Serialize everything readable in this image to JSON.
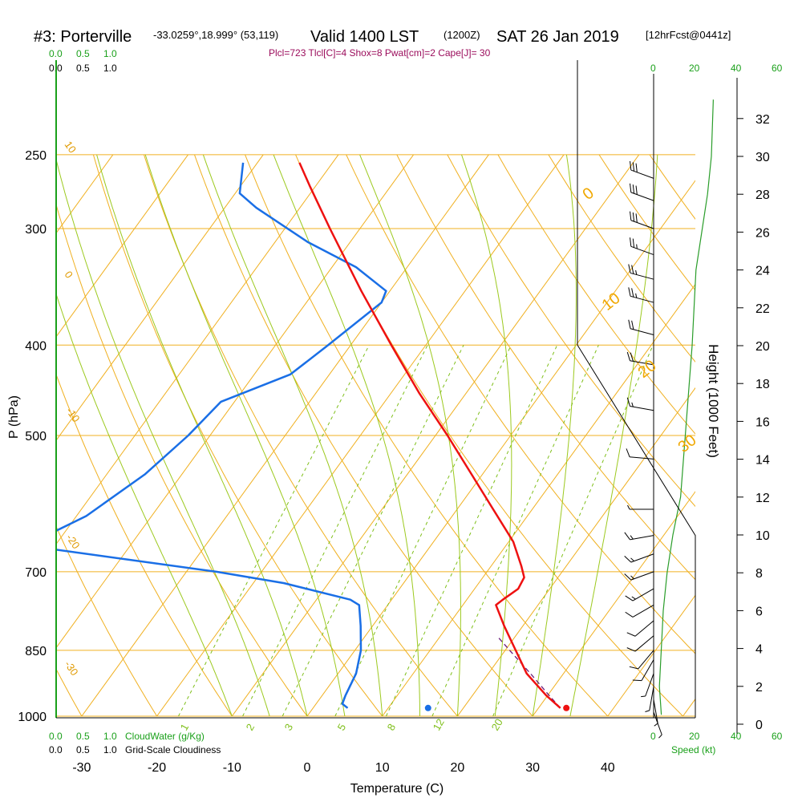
{
  "header": {
    "station": "#3: Porterville",
    "coords": "-33.0259°,18.999° (53,119)",
    "valid": "Valid 1400 LST",
    "utc": "(1200Z)",
    "date": "SAT 26 Jan 2019",
    "fcst": "[12hrFcst@0441z]",
    "indices": "Plcl=723 Tlcl[C]=4 Shox=8 Pwat[cm]=2 Cape[J]= 30"
  },
  "scales": {
    "cloudwater_ticks": [
      "0.0",
      "0.5",
      "1.0"
    ],
    "cloudiness_ticks": [
      "0.0",
      "0.5",
      "1.0"
    ],
    "cloudwater_label": "CloudWater (g/Kg)",
    "cloudiness_label": "Grid-Scale Cloudiness",
    "speed_ticks": [
      "0",
      "20",
      "40",
      "60"
    ],
    "speed_label": "Speed (kt)"
  },
  "axes": {
    "ylabel": "P (hPa)",
    "xlabel": "Temperature (C)",
    "height_label": "Height (1000 Feet)"
  },
  "colors": {
    "temperature": "#ee1111",
    "dewpoint": "#1a6fe6",
    "parcel": "#6a1a7a",
    "isotherm": "#f0b020",
    "mixing_ratio": "#7fbf1a",
    "wind_speed": "#2a9d2a"
  },
  "chart_data": {
    "type": "skew-t",
    "pressure_levels": [
      250,
      300,
      400,
      500,
      700,
      850,
      1000
    ],
    "pressure_scale": "log",
    "x_ticks": [
      -30,
      -20,
      -10,
      0,
      10,
      20,
      30,
      40
    ],
    "height_ticks_kft": [
      0,
      2,
      4,
      6,
      8,
      10,
      12,
      14,
      16,
      18,
      20,
      22,
      24,
      26,
      28,
      30,
      32
    ],
    "isotherm_labels": [
      "10",
      "0",
      "-10",
      "-20",
      "-30"
    ],
    "dry_adiabat_labels": [
      "0",
      "10",
      "20",
      "30"
    ],
    "mixing_ratio_labels": [
      "1",
      "2",
      "3",
      "5",
      "8",
      "12",
      "20"
    ],
    "temperature_profile": [
      {
        "p": 980,
        "t": 32.9
      },
      {
        "p": 950,
        "t": 29.8
      },
      {
        "p": 900,
        "t": 25.1
      },
      {
        "p": 850,
        "t": 21.4
      },
      {
        "p": 800,
        "t": 17.5
      },
      {
        "p": 760,
        "t": 14.4
      },
      {
        "p": 750,
        "t": 14.8
      },
      {
        "p": 730,
        "t": 15.8
      },
      {
        "p": 710,
        "t": 15.5
      },
      {
        "p": 690,
        "t": 14.0
      },
      {
        "p": 650,
        "t": 10.6
      },
      {
        "p": 600,
        "t": 4.8
      },
      {
        "p": 550,
        "t": -1.5
      },
      {
        "p": 500,
        "t": -8.4
      },
      {
        "p": 450,
        "t": -16.3
      },
      {
        "p": 400,
        "t": -24.6
      },
      {
        "p": 350,
        "t": -33.8
      },
      {
        "p": 300,
        "t": -44.0
      },
      {
        "p": 270,
        "t": -50.8
      },
      {
        "p": 255,
        "t": -54.4
      }
    ],
    "dewpoint_profile": [
      {
        "p": 980,
        "t": 4.6
      },
      {
        "p": 970,
        "t": 3.5
      },
      {
        "p": 950,
        "t": 3.1
      },
      {
        "p": 900,
        "t": 2.4
      },
      {
        "p": 850,
        "t": 0.8
      },
      {
        "p": 800,
        "t": -1.6
      },
      {
        "p": 760,
        "t": -3.8
      },
      {
        "p": 750,
        "t": -5.5
      },
      {
        "p": 720,
        "t": -15.9
      },
      {
        "p": 700,
        "t": -26.0
      },
      {
        "p": 660,
        "t": -51.3
      },
      {
        "p": 640,
        "t": -52.1
      },
      {
        "p": 610,
        "t": -48.7
      },
      {
        "p": 550,
        "t": -44.9
      },
      {
        "p": 500,
        "t": -42.9
      },
      {
        "p": 460,
        "t": -41.8
      },
      {
        "p": 430,
        "t": -35.2
      },
      {
        "p": 400,
        "t": -33.0
      },
      {
        "p": 360,
        "t": -30.0
      },
      {
        "p": 350,
        "t": -30.5
      },
      {
        "p": 330,
        "t": -36.8
      },
      {
        "p": 310,
        "t": -45.7
      },
      {
        "p": 285,
        "t": -55.8
      },
      {
        "p": 275,
        "t": -59.4
      },
      {
        "p": 255,
        "t": -61.9
      }
    ],
    "parcel_profile": [
      {
        "p": 980,
        "t": 32.9
      },
      {
        "p": 950,
        "t": 30.2
      },
      {
        "p": 900,
        "t": 25.6
      },
      {
        "p": 850,
        "t": 20.6
      },
      {
        "p": 820,
        "t": 17.5
      }
    ],
    "surface": {
      "t": 33.7,
      "td": 15.3
    },
    "wind_speed_profile_kt": [
      {
        "kft": 0.5,
        "v": 4
      },
      {
        "kft": 2,
        "v": 3
      },
      {
        "kft": 4,
        "v": 4
      },
      {
        "kft": 6,
        "v": 5
      },
      {
        "kft": 8,
        "v": 7
      },
      {
        "kft": 10,
        "v": 10
      },
      {
        "kft": 12,
        "v": 14
      },
      {
        "kft": 16,
        "v": 17
      },
      {
        "kft": 20,
        "v": 20
      },
      {
        "kft": 24,
        "v": 22
      },
      {
        "kft": 26,
        "v": 25
      },
      {
        "kft": 28,
        "v": 28
      },
      {
        "kft": 30,
        "v": 30
      },
      {
        "kft": 33,
        "v": 31
      }
    ],
    "wind_barbs": [
      {
        "p": 990,
        "dir": 160,
        "spd": 5
      },
      {
        "p": 960,
        "dir": 170,
        "spd": 5
      },
      {
        "p": 930,
        "dir": 190,
        "spd": 5
      },
      {
        "p": 900,
        "dir": 200,
        "spd": 5
      },
      {
        "p": 870,
        "dir": 210,
        "spd": 10
      },
      {
        "p": 850,
        "dir": 220,
        "spd": 10
      },
      {
        "p": 820,
        "dir": 230,
        "spd": 10
      },
      {
        "p": 790,
        "dir": 230,
        "spd": 10
      },
      {
        "p": 760,
        "dir": 240,
        "spd": 10
      },
      {
        "p": 730,
        "dir": 240,
        "spd": 15
      },
      {
        "p": 700,
        "dir": 250,
        "spd": 15
      },
      {
        "p": 670,
        "dir": 250,
        "spd": 15
      },
      {
        "p": 640,
        "dir": 260,
        "spd": 15
      },
      {
        "p": 600,
        "dir": 270,
        "spd": 5
      },
      {
        "p": 530,
        "dir": 275,
        "spd": 10
      },
      {
        "p": 470,
        "dir": 280,
        "spd": 15
      },
      {
        "p": 420,
        "dir": 280,
        "spd": 20
      },
      {
        "p": 390,
        "dir": 285,
        "spd": 20
      },
      {
        "p": 360,
        "dir": 285,
        "spd": 25
      },
      {
        "p": 340,
        "dir": 285,
        "spd": 25
      },
      {
        "p": 320,
        "dir": 290,
        "spd": 25
      },
      {
        "p": 300,
        "dir": 290,
        "spd": 30
      },
      {
        "p": 280,
        "dir": 290,
        "spd": 30
      },
      {
        "p": 265,
        "dir": 290,
        "spd": 30
      }
    ]
  }
}
